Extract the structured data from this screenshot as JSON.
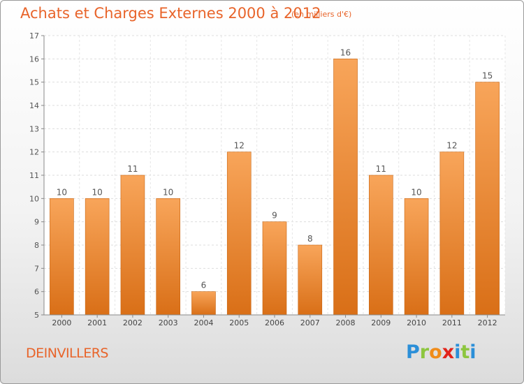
{
  "title": "Achats et Charges Externes 2000 à 2012",
  "unit": "(en milliers d'€)",
  "town": "DEINVILLERS",
  "logo": {
    "letters": [
      "P",
      "r",
      "o",
      "x",
      "i",
      "t",
      "i"
    ],
    "colors": [
      "#2b8fd8",
      "#8dc63f",
      "#f08c1a",
      "#e2231a",
      "#2b8fd8",
      "#8dc63f",
      "#2b8fd8"
    ]
  },
  "chart_data": {
    "type": "bar",
    "categories": [
      "2000",
      "2001",
      "2002",
      "2003",
      "2004",
      "2005",
      "2006",
      "2007",
      "2008",
      "2009",
      "2010",
      "2011",
      "2012"
    ],
    "values": [
      10,
      10,
      11,
      10,
      6,
      12,
      9,
      8,
      16,
      11,
      10,
      12,
      15
    ],
    "ylim": [
      5,
      17
    ],
    "yticks": [
      5,
      6,
      7,
      8,
      9,
      10,
      11,
      12,
      13,
      14,
      15,
      16,
      17
    ],
    "grid": true,
    "bar_color_top": "#f8a55a",
    "bar_color_bottom": "#d96f17"
  }
}
